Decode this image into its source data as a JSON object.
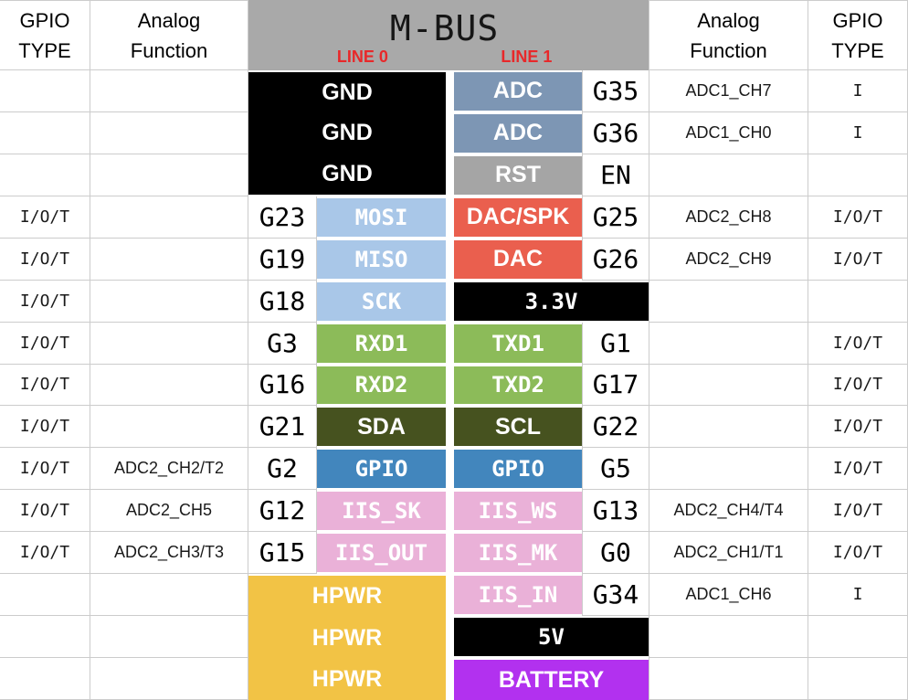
{
  "header": {
    "left_type": [
      "GPIO",
      "TYPE"
    ],
    "left_analog": [
      "Analog",
      "Function"
    ],
    "mbus_title": "M-BUS",
    "line0_label": "LINE 0",
    "line1_label": "LINE 1",
    "right_analog": [
      "Analog",
      "Function"
    ],
    "right_type": [
      "GPIO",
      "TYPE"
    ]
  },
  "colors": {
    "header_bg": "#a9a9a9",
    "line_label_red": "#e8282a",
    "gnd_black": "#000000",
    "adc_slate": "#7d96b4",
    "rst_gray": "#a5a5a5",
    "spi_lightblue": "#a9c7e8",
    "dac_red": "#ea5f4e",
    "power_black": "#000000",
    "uart_green": "#8cbb59",
    "i2c_darkgreen": "#46521f",
    "gpio_blue": "#4286bd",
    "iis_pink": "#eab1d8",
    "hpwr_orange": "#f2c345",
    "battery_purple": "#b231ef",
    "grid_line": "#cccccc"
  },
  "rows": [
    {
      "left_type": "",
      "left_analog": "",
      "left_pin": "",
      "line0": "GND",
      "line1": "ADC",
      "right_pin": "G35",
      "right_analog": "ADC1_CH7",
      "right_type": "I"
    },
    {
      "left_type": "",
      "left_analog": "",
      "left_pin": "",
      "line0": "GND",
      "line1": "ADC",
      "right_pin": "G36",
      "right_analog": "ADC1_CH0",
      "right_type": "I"
    },
    {
      "left_type": "",
      "left_analog": "",
      "left_pin": "",
      "line0": "GND",
      "line1": "RST",
      "right_pin": "EN",
      "right_analog": "",
      "right_type": ""
    },
    {
      "left_type": "I/O/T",
      "left_analog": "",
      "left_pin": "G23",
      "line0": "MOSI",
      "line1": "DAC/SPK",
      "right_pin": "G25",
      "right_analog": "ADC2_CH8",
      "right_type": "I/O/T"
    },
    {
      "left_type": "I/O/T",
      "left_analog": "",
      "left_pin": "G19",
      "line0": "MISO",
      "line1": "DAC",
      "right_pin": "G26",
      "right_analog": "ADC2_CH9",
      "right_type": "I/O/T"
    },
    {
      "left_type": "I/O/T",
      "left_analog": "",
      "left_pin": "G18",
      "line0": "SCK",
      "line1": "3.3V",
      "right_pin": "",
      "right_analog": "",
      "right_type": ""
    },
    {
      "left_type": "I/O/T",
      "left_analog": "",
      "left_pin": "G3",
      "line0": "RXD1",
      "line1": "TXD1",
      "right_pin": "G1",
      "right_analog": "",
      "right_type": "I/O/T"
    },
    {
      "left_type": "I/O/T",
      "left_analog": "",
      "left_pin": "G16",
      "line0": "RXD2",
      "line1": "TXD2",
      "right_pin": "G17",
      "right_analog": "",
      "right_type": "I/O/T"
    },
    {
      "left_type": "I/O/T",
      "left_analog": "",
      "left_pin": "G21",
      "line0": "SDA",
      "line1": "SCL",
      "right_pin": "G22",
      "right_analog": "",
      "right_type": "I/O/T"
    },
    {
      "left_type": "I/O/T",
      "left_analog": "ADC2_CH2/T2",
      "left_pin": "G2",
      "line0": "GPIO",
      "line1": "GPIO",
      "right_pin": "G5",
      "right_analog": "",
      "right_type": "I/O/T"
    },
    {
      "left_type": "I/O/T",
      "left_analog": "ADC2_CH5",
      "left_pin": "G12",
      "line0": "IIS_SK",
      "line1": "IIS_WS",
      "right_pin": "G13",
      "right_analog": "ADC2_CH4/T4",
      "right_type": "I/O/T"
    },
    {
      "left_type": "I/O/T",
      "left_analog": "ADC2_CH3/T3",
      "left_pin": "G15",
      "line0": "IIS_OUT",
      "line1": "IIS_MK",
      "right_pin": "G0",
      "right_analog": "ADC2_CH1/T1",
      "right_type": "I/O/T"
    },
    {
      "left_type": "",
      "left_analog": "",
      "left_pin": "",
      "line0": "HPWR",
      "line1": "IIS_IN",
      "right_pin": "G34",
      "right_analog": "ADC1_CH6",
      "right_type": "I"
    },
    {
      "left_type": "",
      "left_analog": "",
      "left_pin": "",
      "line0": "HPWR",
      "line1": "5V",
      "right_pin": "",
      "right_analog": "",
      "right_type": ""
    },
    {
      "left_type": "",
      "left_analog": "",
      "left_pin": "",
      "line0": "HPWR",
      "line1": "BATTERY",
      "right_pin": "",
      "right_analog": "",
      "right_type": ""
    }
  ]
}
